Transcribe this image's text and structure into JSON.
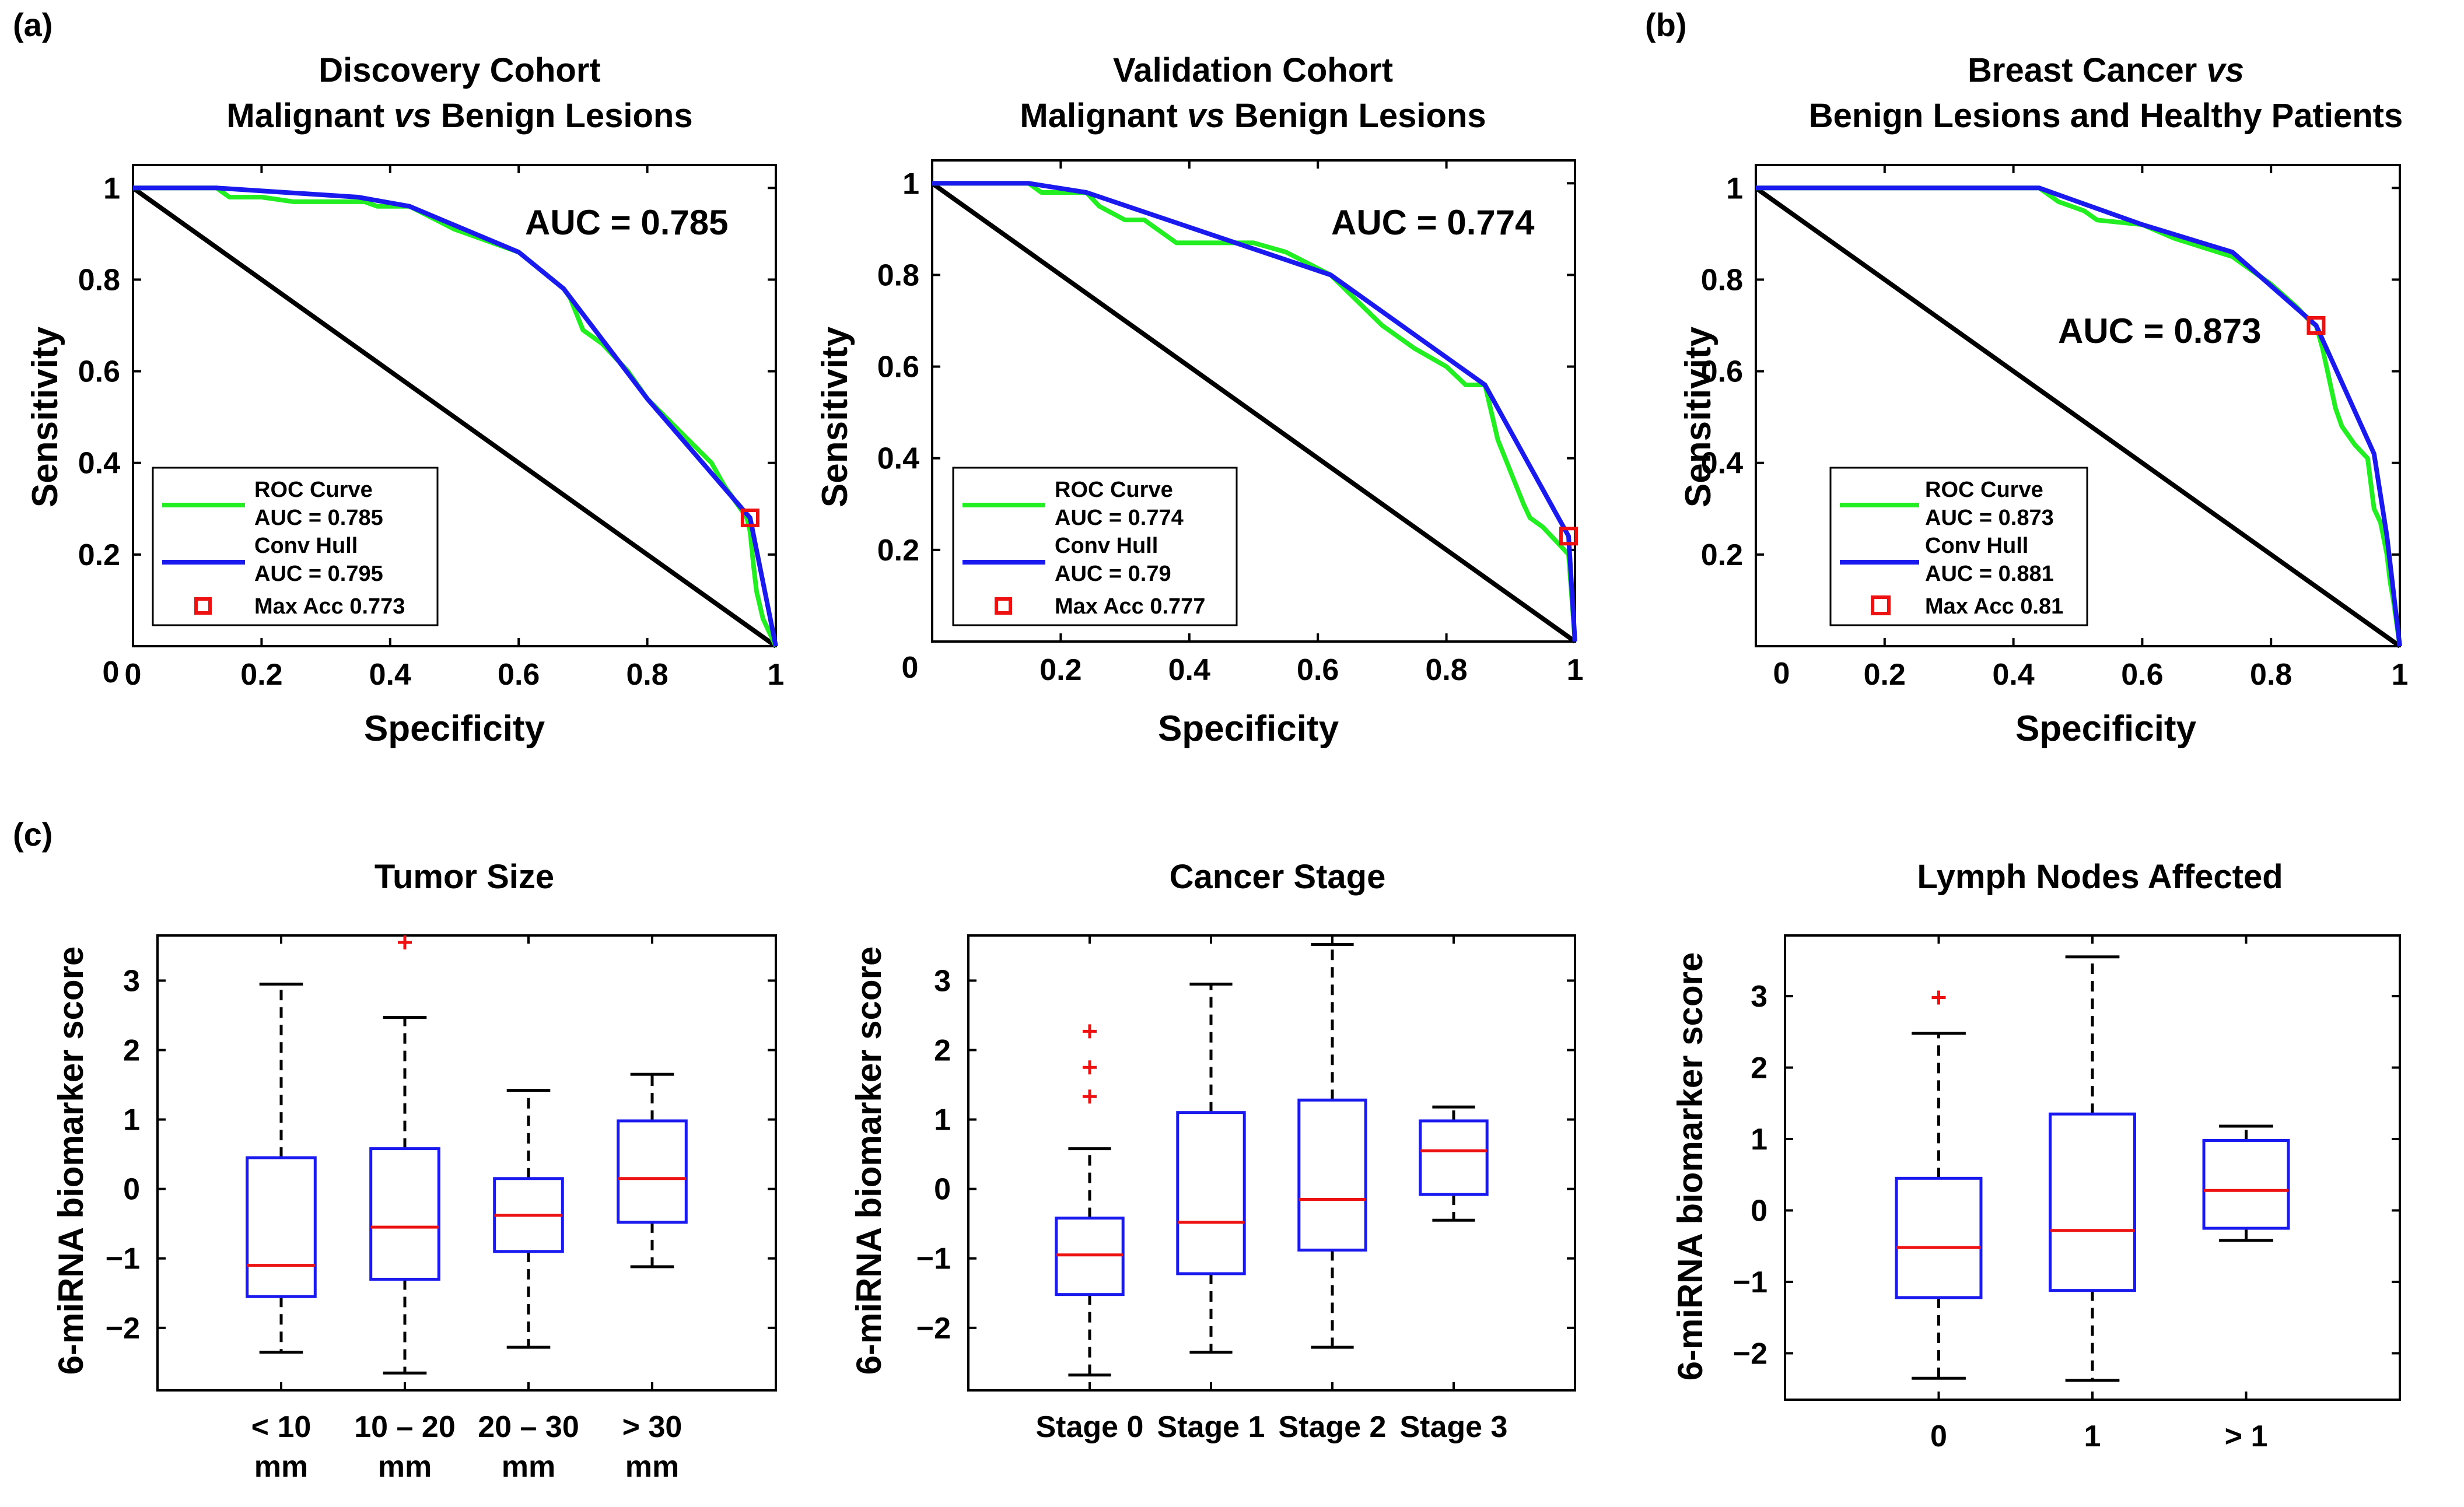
{
  "panel_labels": {
    "a": "(a)",
    "b": "(b)",
    "c": "(c)"
  },
  "colors": {
    "roc": "#22ee22",
    "hull": "#1a1aee",
    "diagonal": "#000000",
    "maxacc": "#ee1111",
    "box": "#1a1aee",
    "median": "#ee1111",
    "outlier": "#ee1111"
  },
  "chart_data": [
    {
      "id": "roc-discovery",
      "type": "line",
      "title_line1": "Discovery Cohort",
      "title_line2_pre": "Malignant ",
      "title_line2_em": "vs",
      "title_line2_post": " Benign Lesions",
      "xlabel": "Specificity",
      "ylabel": "Sensitivity",
      "xlim": [
        0,
        1
      ],
      "ylim": [
        0,
        1.05
      ],
      "xticks": [
        0,
        0.2,
        0.4,
        0.6,
        0.8,
        1
      ],
      "xtick_labels": [
        "0",
        "0.2",
        "0.4",
        "0.6",
        "0.8",
        "1"
      ],
      "yticks": [
        0,
        0.2,
        0.4,
        0.6,
        0.8,
        1
      ],
      "ytick_labels": [
        "",
        "0.2",
        "0.4",
        "0.6",
        "0.8",
        "1"
      ],
      "corner_zero": "0",
      "auc_label": "AUC = 0.785",
      "legend": {
        "roc_name": "ROC Curve",
        "roc_auc": "AUC = 0.785",
        "hull_name": "Conv Hull",
        "hull_auc": "AUC = 0.795",
        "maxacc": "Max Acc 0.773"
      },
      "series": [
        {
          "name": "ROC Curve",
          "x": [
            0,
            0.13,
            0.15,
            0.2,
            0.25,
            0.3,
            0.36,
            0.38,
            0.43,
            0.5,
            0.6,
            0.67,
            0.68,
            0.7,
            0.73,
            0.77,
            0.8,
            0.85,
            0.9,
            0.92,
            0.94,
            0.955,
            0.96,
            0.965,
            0.97,
            0.98,
            1
          ],
          "y": [
            1,
            1,
            0.98,
            0.98,
            0.97,
            0.97,
            0.97,
            0.96,
            0.96,
            0.91,
            0.86,
            0.78,
            0.76,
            0.69,
            0.66,
            0.6,
            0.54,
            0.47,
            0.4,
            0.35,
            0.31,
            0.28,
            0.25,
            0.18,
            0.12,
            0.06,
            0
          ]
        },
        {
          "name": "Conv Hull",
          "x": [
            0,
            0.13,
            0.35,
            0.43,
            0.6,
            0.67,
            0.8,
            0.96,
            1
          ],
          "y": [
            1,
            1,
            0.98,
            0.96,
            0.86,
            0.78,
            0.54,
            0.28,
            0
          ]
        }
      ],
      "max_acc_point": {
        "x": 0.96,
        "y": 0.28
      }
    },
    {
      "id": "roc-validation",
      "type": "line",
      "title_line1": "Validation Cohort",
      "title_line2_pre": "Malignant ",
      "title_line2_em": "vs",
      "title_line2_post": " Benign Lesions",
      "xlabel": "Specificity",
      "ylabel": "Sensitivity",
      "xlim": [
        0,
        1
      ],
      "ylim": [
        0,
        1.05
      ],
      "xticks": [
        0,
        0.2,
        0.4,
        0.6,
        0.8,
        1
      ],
      "xtick_labels": [
        "",
        "0.2",
        "0.4",
        "0.6",
        "0.8",
        "1"
      ],
      "yticks": [
        0,
        0.2,
        0.4,
        0.6,
        0.8,
        1
      ],
      "ytick_labels": [
        "",
        "0.2",
        "0.4",
        "0.6",
        "0.8",
        "1"
      ],
      "corner_zero": "0",
      "auc_label": "AUC = 0.774",
      "legend": {
        "roc_name": "ROC Curve",
        "roc_auc": "AUC = 0.774",
        "hull_name": "Conv Hull",
        "hull_auc": "AUC = 0.79",
        "maxacc": "Max Acc 0.777"
      },
      "series": [
        {
          "name": "ROC Curve",
          "x": [
            0,
            0.15,
            0.17,
            0.24,
            0.26,
            0.3,
            0.33,
            0.35,
            0.38,
            0.5,
            0.55,
            0.62,
            0.7,
            0.75,
            0.8,
            0.83,
            0.86,
            0.88,
            0.9,
            0.92,
            0.93,
            0.95,
            0.97,
            0.99,
            1
          ],
          "y": [
            1,
            1,
            0.98,
            0.98,
            0.95,
            0.92,
            0.92,
            0.9,
            0.87,
            0.87,
            0.85,
            0.8,
            0.69,
            0.64,
            0.6,
            0.56,
            0.56,
            0.44,
            0.37,
            0.3,
            0.27,
            0.25,
            0.22,
            0.19,
            0
          ]
        },
        {
          "name": "Conv Hull",
          "x": [
            0,
            0.15,
            0.24,
            0.62,
            0.86,
            0.99,
            1
          ],
          "y": [
            1,
            1,
            0.98,
            0.8,
            0.56,
            0.23,
            0
          ]
        }
      ],
      "max_acc_point": {
        "x": 0.99,
        "y": 0.23
      }
    },
    {
      "id": "roc-breast",
      "type": "line",
      "title_line1_pre": "Breast Cancer ",
      "title_line1_em": "vs",
      "title_line1_post": "",
      "title_line2": "Benign Lesions and Healthy Patients",
      "xlabel": "Specificity",
      "ylabel": "Sensitivity",
      "xlim": [
        0,
        1
      ],
      "ylim": [
        0,
        1.05
      ],
      "xticks": [
        0,
        0.2,
        0.4,
        0.6,
        0.8,
        1
      ],
      "xtick_labels": [
        "",
        "0.2",
        "0.4",
        "0.6",
        "0.8",
        "1"
      ],
      "yticks": [
        0,
        0.2,
        0.4,
        0.6,
        0.8,
        1
      ],
      "ytick_labels": [
        "",
        "0.2",
        "0.4",
        "0.6",
        "0.8",
        "1"
      ],
      "corner_zero": "0",
      "auc_label": "AUC = 0.873",
      "legend": {
        "roc_name": "ROC Curve",
        "roc_auc": "AUC = 0.873",
        "hull_name": "Conv Hull",
        "hull_auc": "AUC = 0.881",
        "maxacc": "Max Acc 0.81"
      },
      "series": [
        {
          "name": "ROC Curve",
          "x": [
            0,
            0.44,
            0.47,
            0.51,
            0.53,
            0.6,
            0.65,
            0.74,
            0.76,
            0.8,
            0.84,
            0.86,
            0.87,
            0.88,
            0.9,
            0.91,
            0.93,
            0.95,
            0.96,
            0.97,
            0.98,
            0.985,
            0.99,
            1
          ],
          "y": [
            1,
            1,
            0.97,
            0.95,
            0.93,
            0.92,
            0.89,
            0.85,
            0.83,
            0.79,
            0.74,
            0.71,
            0.7,
            0.65,
            0.52,
            0.48,
            0.44,
            0.41,
            0.3,
            0.27,
            0.2,
            0.14,
            0.1,
            0
          ]
        },
        {
          "name": "Conv Hull",
          "x": [
            0,
            0.44,
            0.6,
            0.74,
            0.87,
            0.96,
            0.98,
            1
          ],
          "y": [
            1,
            1,
            0.92,
            0.86,
            0.7,
            0.42,
            0.24,
            0
          ]
        }
      ],
      "max_acc_point": {
        "x": 0.87,
        "y": 0.7
      }
    },
    {
      "id": "box-tumor",
      "type": "box",
      "title": "Tumor Size",
      "ylabel": "6-miRNA biomarker score",
      "ylim": [
        -2.9,
        3.65
      ],
      "yticks": [
        -2,
        -1,
        0,
        1,
        2,
        3
      ],
      "ytick_labels": [
        "−2",
        "−1",
        "0",
        "1",
        "2",
        "3"
      ],
      "categories": [
        {
          "line1": "< 10",
          "line2": "mm"
        },
        {
          "line1": "10 – 20",
          "line2": "mm"
        },
        {
          "line1": "20 – 30",
          "line2": "mm"
        },
        {
          "line1": "> 30",
          "line2": "mm"
        }
      ],
      "boxes": [
        {
          "whislo": -2.35,
          "q1": -1.55,
          "med": -1.1,
          "q3": 0.45,
          "whishi": 2.95,
          "fliers": []
        },
        {
          "whislo": -2.65,
          "q1": -1.3,
          "med": -0.55,
          "q3": 0.58,
          "whishi": 2.47,
          "fliers": [
            3.55
          ]
        },
        {
          "whislo": -2.28,
          "q1": -0.9,
          "med": -0.38,
          "q3": 0.15,
          "whishi": 1.42,
          "fliers": []
        },
        {
          "whislo": -1.12,
          "q1": -0.48,
          "med": 0.15,
          "q3": 0.98,
          "whishi": 1.65,
          "fliers": []
        }
      ]
    },
    {
      "id": "box-stage",
      "type": "box",
      "title": "Cancer Stage",
      "ylabel": "6-miRNA biomarker score",
      "ylim": [
        -2.9,
        3.65
      ],
      "yticks": [
        -2,
        -1,
        0,
        1,
        2,
        3
      ],
      "ytick_labels": [
        "−2",
        "−1",
        "0",
        "1",
        "2",
        "3"
      ],
      "categories": [
        {
          "line1": "Stage 0",
          "line2": ""
        },
        {
          "line1": "Stage 1",
          "line2": ""
        },
        {
          "line1": "Stage 2",
          "line2": ""
        },
        {
          "line1": "Stage 3",
          "line2": ""
        }
      ],
      "boxes": [
        {
          "whislo": -2.68,
          "q1": -1.52,
          "med": -0.95,
          "q3": -0.42,
          "whishi": 0.58,
          "fliers": [
            1.33,
            1.75,
            2.27
          ]
        },
        {
          "whislo": -2.35,
          "q1": -1.22,
          "med": -0.48,
          "q3": 1.1,
          "whishi": 2.95,
          "fliers": []
        },
        {
          "whislo": -2.28,
          "q1": -0.88,
          "med": -0.15,
          "q3": 1.28,
          "whishi": 3.52,
          "fliers": []
        },
        {
          "whislo": -0.45,
          "q1": -0.08,
          "med": 0.55,
          "q3": 0.98,
          "whishi": 1.18,
          "fliers": []
        }
      ]
    },
    {
      "id": "box-lymph",
      "type": "box",
      "title": "Lymph Nodes Affected",
      "ylabel": "6-miRNA biomarker score",
      "ylim": [
        -2.65,
        3.85
      ],
      "yticks": [
        -2,
        -1,
        0,
        1,
        2,
        3
      ],
      "ytick_labels": [
        "−2",
        "−1",
        "0",
        "1",
        "2",
        "3"
      ],
      "categories": [
        {
          "line1": "0",
          "line2": ""
        },
        {
          "line1": "1",
          "line2": ""
        },
        {
          "line1": "> 1",
          "line2": ""
        }
      ],
      "boxes": [
        {
          "whislo": -2.35,
          "q1": -1.22,
          "med": -0.52,
          "q3": 0.45,
          "whishi": 2.48,
          "fliers": [
            2.98
          ]
        },
        {
          "whislo": -2.38,
          "q1": -1.12,
          "med": -0.28,
          "q3": 1.35,
          "whishi": 3.55,
          "fliers": []
        },
        {
          "whislo": -0.42,
          "q1": -0.25,
          "med": 0.28,
          "q3": 0.98,
          "whishi": 1.18,
          "fliers": []
        }
      ]
    }
  ]
}
